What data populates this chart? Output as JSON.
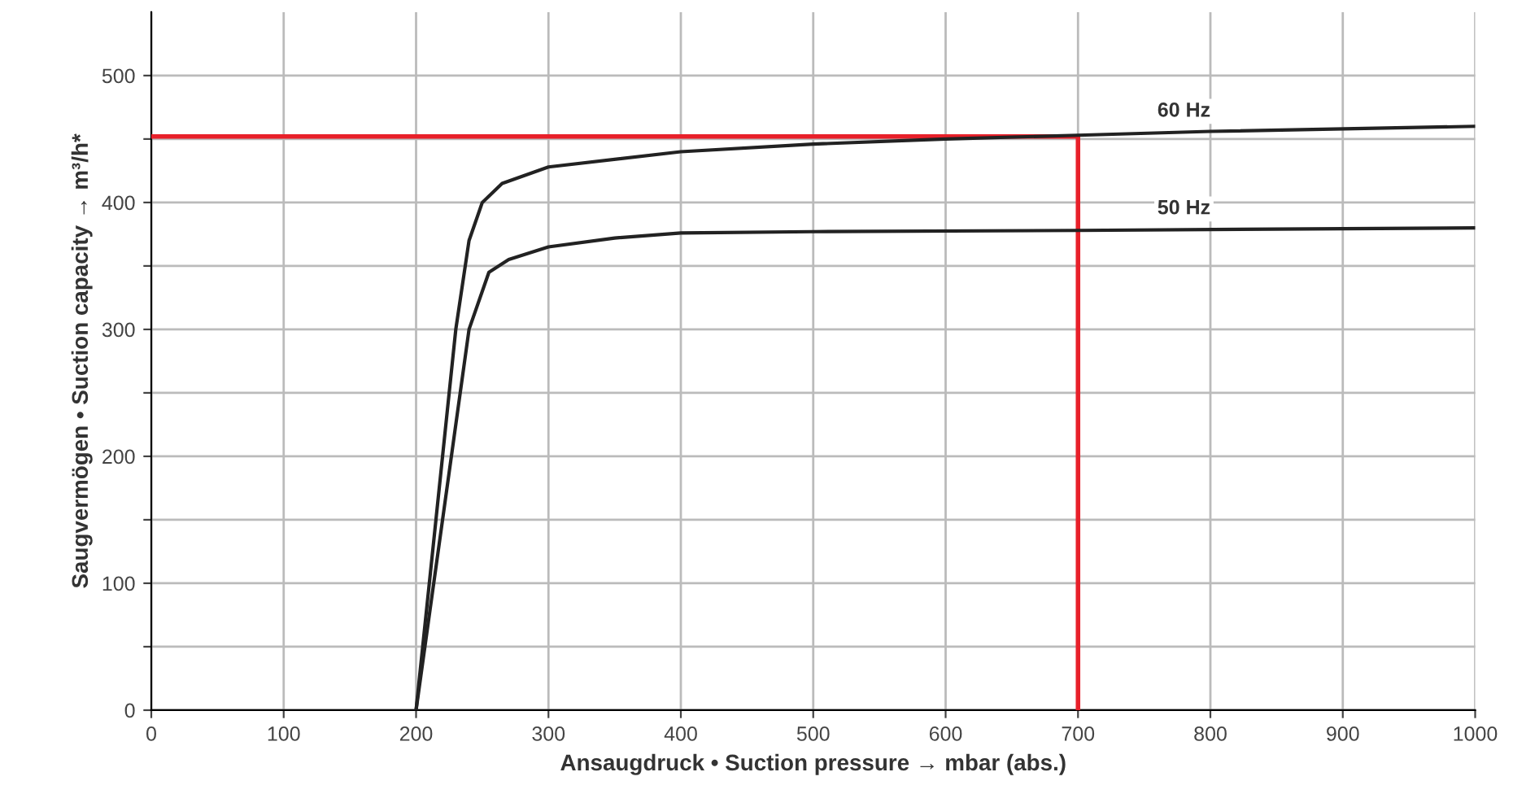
{
  "chart_data": {
    "type": "line",
    "xlabel": "Ansaugdruck • Suction pressure → mbar (abs.)",
    "ylabel": "Saugvermögen • Suction capacity → m³/h*",
    "series": [
      {
        "name": "60 Hz",
        "color": "#222222",
        "x": [
          200,
          215,
          230,
          240,
          250,
          265,
          300,
          400,
          500,
          600,
          700,
          800,
          1000
        ],
        "values": [
          0,
          150,
          300,
          370,
          400,
          415,
          428,
          440,
          446,
          450,
          453,
          456,
          460
        ]
      },
      {
        "name": "50 Hz",
        "color": "#222222",
        "x": [
          200,
          220,
          240,
          255,
          270,
          300,
          350,
          400,
          500,
          700,
          1000
        ],
        "values": [
          0,
          150,
          300,
          345,
          355,
          365,
          372,
          376,
          377,
          378,
          380
        ]
      },
      {
        "color": "#e8202a",
        "x": [
          0,
          700,
          700
        ],
        "values": [
          452,
          452,
          0
        ]
      }
    ],
    "xlim": [
      0,
      1000
    ],
    "ylim": [
      0,
      550
    ],
    "xticks": [
      0,
      100,
      200,
      300,
      400,
      500,
      600,
      700,
      800,
      900,
      1000
    ],
    "yticks": [
      0,
      {
        "value": 50,
        "label": null
      },
      100,
      {
        "value": 150,
        "label": null
      },
      200,
      {
        "value": 250,
        "label": null
      },
      300,
      {
        "value": 350,
        "label": null
      },
      400,
      {
        "value": 450,
        "label": null
      },
      500
    ],
    "grid": true,
    "marker": "none",
    "line_style": "solid"
  }
}
